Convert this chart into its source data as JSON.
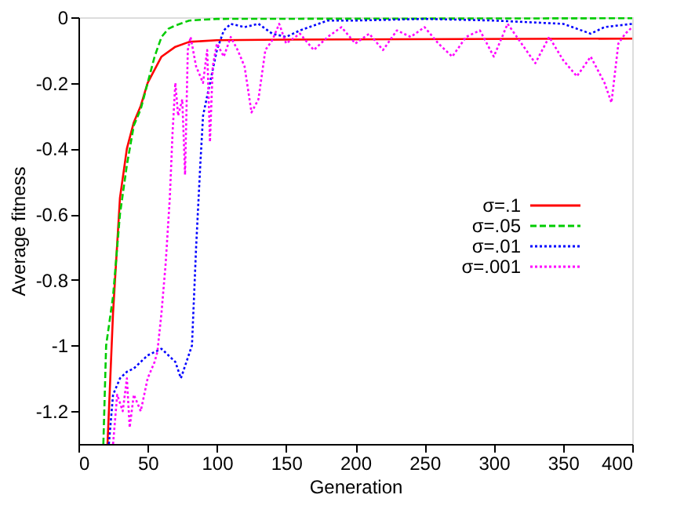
{
  "chart_data": {
    "type": "line",
    "xlabel": "Generation",
    "ylabel": "Average fitness",
    "xlim": [
      0,
      400
    ],
    "xticks": [
      0,
      50,
      100,
      150,
      200,
      250,
      300,
      350,
      400
    ],
    "ylim": [
      -1.3,
      0
    ],
    "yticks": [
      0,
      -0.2,
      -0.4,
      -0.6,
      -0.8,
      -1,
      -1.2
    ],
    "grid": false,
    "legend": "right",
    "marker": "none",
    "series": [
      {
        "name": "σ=.1",
        "color": "#ff0000",
        "line_style": "solid",
        "x": [
          21,
          25,
          30,
          35,
          40,
          45,
          50,
          55,
          60,
          70,
          80,
          100,
          150,
          400
        ],
        "values": [
          -1.3,
          -0.9,
          -0.55,
          -0.4,
          -0.32,
          -0.27,
          -0.2,
          -0.16,
          -0.12,
          -0.09,
          -0.075,
          -0.07,
          -0.068,
          -0.065
        ]
      },
      {
        "name": "σ=.05",
        "color": "#00cc00",
        "line_style": "dashed",
        "x": [
          18,
          20,
          25,
          30,
          35,
          40,
          45,
          50,
          55,
          60,
          65,
          70,
          80,
          100,
          400
        ],
        "values": [
          -1.3,
          -1.0,
          -0.85,
          -0.6,
          -0.45,
          -0.33,
          -0.28,
          -0.2,
          -0.12,
          -0.06,
          -0.035,
          -0.025,
          -0.01,
          -0.005,
          -0.003
        ]
      },
      {
        "name": "σ=.01",
        "color": "#0000ff",
        "line_style": "dotted",
        "x": [
          22,
          25,
          30,
          35,
          40,
          45,
          50,
          55,
          60,
          65,
          70,
          74,
          78,
          82,
          85,
          88,
          90,
          95,
          100,
          105,
          110,
          120,
          130,
          140,
          150,
          160,
          180,
          200,
          250,
          300,
          350,
          370,
          380,
          400
        ],
        "values": [
          -1.3,
          -1.15,
          -1.1,
          -1.08,
          -1.07,
          -1.05,
          -1.03,
          -1.02,
          -1.01,
          -1.03,
          -1.05,
          -1.1,
          -1.05,
          -1.0,
          -0.7,
          -0.45,
          -0.3,
          -0.2,
          -0.1,
          -0.04,
          -0.02,
          -0.03,
          -0.02,
          -0.05,
          -0.06,
          -0.04,
          -0.01,
          -0.01,
          -0.005,
          -0.01,
          -0.02,
          -0.05,
          -0.03,
          -0.02
        ]
      },
      {
        "name": "σ=.001",
        "color": "#ff00ff",
        "line_style": "dotted",
        "x": [
          25,
          28,
          32,
          35,
          37,
          40,
          45,
          50,
          55,
          57,
          60,
          63,
          66,
          68,
          70,
          72,
          75,
          77,
          79,
          81,
          85,
          90,
          93,
          95,
          97,
          100,
          105,
          110,
          115,
          120,
          125,
          130,
          135,
          140,
          145,
          150,
          160,
          170,
          180,
          190,
          200,
          210,
          220,
          230,
          240,
          250,
          260,
          270,
          280,
          290,
          300,
          305,
          310,
          320,
          330,
          340,
          350,
          360,
          370,
          380,
          385,
          390,
          395,
          400
        ],
        "values": [
          -1.3,
          -1.15,
          -1.2,
          -1.1,
          -1.25,
          -1.15,
          -1.2,
          -1.1,
          -1.05,
          -1.02,
          -0.9,
          -0.75,
          -0.55,
          -0.35,
          -0.2,
          -0.3,
          -0.25,
          -0.48,
          -0.1,
          -0.06,
          -0.15,
          -0.2,
          -0.1,
          -0.38,
          -0.15,
          -0.08,
          -0.12,
          -0.06,
          -0.1,
          -0.15,
          -0.29,
          -0.25,
          -0.1,
          -0.07,
          -0.02,
          -0.08,
          -0.05,
          -0.1,
          -0.06,
          -0.03,
          -0.08,
          -0.05,
          -0.1,
          -0.04,
          -0.06,
          -0.03,
          -0.08,
          -0.12,
          -0.06,
          -0.04,
          -0.12,
          -0.07,
          -0.02,
          -0.08,
          -0.14,
          -0.06,
          -0.13,
          -0.18,
          -0.12,
          -0.2,
          -0.26,
          -0.08,
          -0.05,
          -0.03
        ]
      }
    ]
  }
}
